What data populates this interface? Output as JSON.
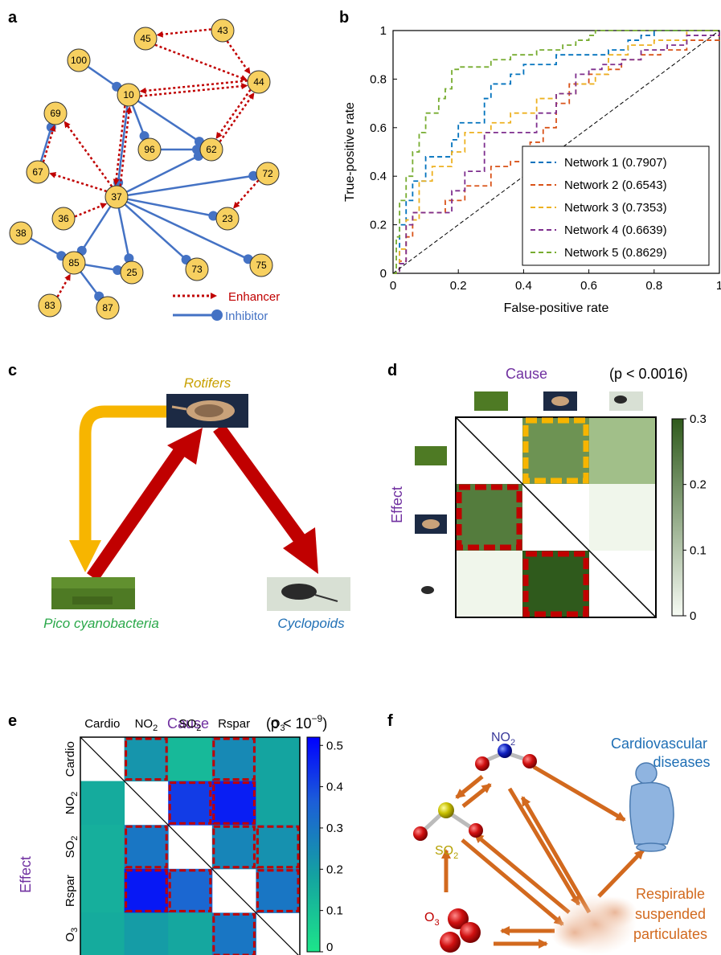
{
  "panels": {
    "a": {
      "label": "a",
      "nodes": [
        "100",
        "45",
        "43",
        "44",
        "10",
        "69",
        "96",
        "62",
        "67",
        "37",
        "72",
        "36",
        "23",
        "38",
        "85",
        "25",
        "73",
        "75",
        "83",
        "87"
      ],
      "legend": {
        "enhancer": "Enhancer",
        "inhibitor": "Inhibitor"
      },
      "colors": {
        "node": "#f7d060",
        "enhancer": "#c00000",
        "inhibitor": "#4472c4"
      }
    },
    "b": {
      "label": "b"
    },
    "c": {
      "label": "c",
      "rotifers": "Rotifers",
      "pico": "Pico cyanobacteria",
      "cyclopoids": "Cyclopoids",
      "colors": {
        "rotifers": "#c8a000",
        "pico": "#2aa84a",
        "cyclopoids": "#1f6fb5",
        "arrow_red": "#c00000",
        "arrow_yellow": "#f7b500"
      }
    },
    "d": {
      "label": "d",
      "cause": "Cause",
      "effect": "Effect",
      "pvalue": "(p < 0.0016)",
      "colorbar_ticks": [
        "0.3",
        "0.2",
        "0.1",
        "0"
      ]
    },
    "e": {
      "label": "e",
      "cause": "Cause",
      "effect": "Effect",
      "pvalue_prefix": "(p < 10",
      "pvalue_exp": "−9",
      "pvalue_suffix": ")",
      "cols": [
        "Cardio",
        "NO",
        "SO",
        "Rspar",
        "O"
      ],
      "col_subs": [
        "",
        "2",
        "2",
        "",
        "3"
      ],
      "colorbar_ticks": [
        "0.5",
        "0.4",
        "0.3",
        "0.2",
        "0.1",
        "0"
      ]
    },
    "f": {
      "label": "f",
      "no2": "NO",
      "no2_sub": "2",
      "so2": "SO",
      "so2_sub": "2",
      "o3": "O",
      "o3_sub": "3",
      "cardio_line1": "Cardiovascular",
      "cardio_line2": "diseases",
      "rsp_line1": "Respirable",
      "rsp_line2": "suspended",
      "rsp_line3": "particulates",
      "colors": {
        "arrow": "#d2691e",
        "rsp_text": "#d2691e",
        "cardio_text": "#1f6fb5",
        "so2_text": "#b5a000",
        "o3_text": "#c00000",
        "no2_text": "#3a3a9a"
      }
    }
  },
  "chart_data": [
    {
      "type": "line",
      "panel": "b",
      "title": "",
      "xlabel": "False-positive rate",
      "ylabel": "True-positive rate",
      "xlim": [
        0,
        1
      ],
      "ylim": [
        0,
        1
      ],
      "xticks": [
        "0",
        "0.2",
        "0.4",
        "0.6",
        "0.8",
        "1"
      ],
      "yticks": [
        "0",
        "0.2",
        "0.4",
        "0.6",
        "0.8",
        "1"
      ],
      "legend_position": "bottom-right",
      "series": [
        {
          "name": "Network 1 (0.7907)",
          "color": "#0072bd",
          "x": [
            0,
            0.02,
            0.04,
            0.06,
            0.1,
            0.14,
            0.18,
            0.2,
            0.24,
            0.28,
            0.3,
            0.36,
            0.4,
            0.44,
            0.5,
            0.56,
            0.6,
            0.66,
            0.72,
            0.76,
            0.8,
            1
          ],
          "y": [
            0,
            0.2,
            0.3,
            0.38,
            0.48,
            0.48,
            0.55,
            0.62,
            0.62,
            0.72,
            0.78,
            0.82,
            0.86,
            0.86,
            0.9,
            0.9,
            0.9,
            0.92,
            0.96,
            0.98,
            1,
            1
          ]
        },
        {
          "name": "Network 2 (0.6543)",
          "color": "#d95319",
          "x": [
            0,
            0.02,
            0.04,
            0.06,
            0.1,
            0.16,
            0.22,
            0.3,
            0.36,
            0.42,
            0.46,
            0.5,
            0.54,
            0.6,
            0.66,
            0.7,
            0.76,
            0.82,
            0.9,
            1
          ],
          "y": [
            0,
            0.05,
            0.15,
            0.25,
            0.25,
            0.3,
            0.36,
            0.44,
            0.46,
            0.54,
            0.6,
            0.7,
            0.78,
            0.82,
            0.84,
            0.88,
            0.9,
            0.92,
            0.96,
            1
          ]
        },
        {
          "name": "Network 3 (0.7353)",
          "color": "#edb120",
          "x": [
            0,
            0.02,
            0.04,
            0.08,
            0.12,
            0.18,
            0.22,
            0.26,
            0.3,
            0.36,
            0.44,
            0.5,
            0.56,
            0.62,
            0.66,
            0.72,
            0.8,
            0.9,
            1
          ],
          "y": [
            0,
            0.1,
            0.22,
            0.38,
            0.44,
            0.5,
            0.58,
            0.58,
            0.62,
            0.66,
            0.72,
            0.74,
            0.78,
            0.82,
            0.9,
            0.94,
            0.96,
            1,
            1
          ]
        },
        {
          "name": "Network 4 (0.6639)",
          "color": "#7e2f8e",
          "x": [
            0,
            0.02,
            0.04,
            0.06,
            0.1,
            0.14,
            0.18,
            0.22,
            0.28,
            0.34,
            0.38,
            0.44,
            0.5,
            0.56,
            0.6,
            0.64,
            0.7,
            0.76,
            0.84,
            0.9,
            1
          ],
          "y": [
            0,
            0.04,
            0.2,
            0.25,
            0.25,
            0.25,
            0.34,
            0.42,
            0.58,
            0.58,
            0.58,
            0.66,
            0.74,
            0.82,
            0.84,
            0.86,
            0.88,
            0.92,
            0.94,
            0.98,
            1
          ]
        },
        {
          "name": "Network 5 (0.8629)",
          "color": "#77ac30",
          "x": [
            0,
            0.01,
            0.02,
            0.04,
            0.06,
            0.08,
            0.1,
            0.14,
            0.16,
            0.18,
            0.2,
            0.22,
            0.3,
            0.36,
            0.44,
            0.52,
            0.56,
            0.6,
            0.62,
            1
          ],
          "y": [
            0,
            0.15,
            0.3,
            0.4,
            0.5,
            0.58,
            0.66,
            0.72,
            0.76,
            0.84,
            0.85,
            0.85,
            0.88,
            0.9,
            0.92,
            0.94,
            0.96,
            0.98,
            1,
            1
          ]
        },
        {
          "name": "",
          "color": "#000000",
          "x": [
            0,
            1
          ],
          "y": [
            0,
            1
          ]
        }
      ]
    },
    {
      "type": "heatmap",
      "panel": "d",
      "rows": [
        "Pico cyanobacteria",
        "Rotifers",
        "Cyclopoids"
      ],
      "cols": [
        "Pico cyanobacteria",
        "Rotifers",
        "Cyclopoids"
      ],
      "values": [
        [
          null,
          0.2,
          0.12
        ],
        [
          0.24,
          null,
          0.01
        ],
        [
          0.01,
          0.3,
          null
        ]
      ],
      "range": [
        0,
        0.3
      ],
      "highlight": [
        [
          0,
          1,
          "#f7b500"
        ],
        [
          1,
          0,
          "#c00000"
        ],
        [
          2,
          1,
          "#c00000"
        ]
      ]
    },
    {
      "type": "heatmap",
      "panel": "e",
      "rows": [
        "Cardio",
        "NO2",
        "SO2",
        "Rspar",
        "O3"
      ],
      "cols": [
        "Cardio",
        "NO2",
        "SO2",
        "Rspar",
        "O3"
      ],
      "values": [
        [
          null,
          0.22,
          0.12,
          0.25,
          0.18
        ],
        [
          0.16,
          null,
          0.42,
          0.47,
          0.18
        ],
        [
          0.15,
          0.3,
          null,
          0.26,
          0.23
        ],
        [
          0.15,
          0.48,
          0.34,
          null,
          0.3
        ],
        [
          0.16,
          0.2,
          0.17,
          0.3,
          null
        ]
      ],
      "range": [
        0,
        0.52
      ],
      "highlight": [
        [
          0,
          1
        ],
        [
          0,
          3
        ],
        [
          1,
          2
        ],
        [
          1,
          3
        ],
        [
          2,
          1
        ],
        [
          2,
          3
        ],
        [
          2,
          4
        ],
        [
          3,
          1
        ],
        [
          3,
          2
        ],
        [
          3,
          4
        ],
        [
          4,
          3
        ]
      ]
    }
  ]
}
